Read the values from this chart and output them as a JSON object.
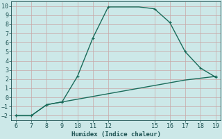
{
  "xlabel": "Humidex (Indice chaleur)",
  "bg_color": "#cce8e8",
  "grid_color_minor": "#c8a8a8",
  "grid_color_major": "#c8a8a8",
  "line_color": "#1a6b5a",
  "line1_x": [
    6,
    7,
    8,
    9,
    10,
    11,
    12,
    13,
    14,
    15,
    16,
    17,
    18,
    19
  ],
  "line1_y": [
    -2,
    -2,
    -0.8,
    -0.5,
    2.3,
    6.5,
    9.9,
    9.9,
    9.9,
    9.7,
    8.2,
    5.0,
    3.2,
    2.2
  ],
  "line2_x": [
    6,
    7,
    8,
    9,
    10,
    11,
    12,
    13,
    14,
    15,
    16,
    17,
    18,
    19
  ],
  "line2_y": [
    -2,
    -2,
    -0.8,
    -0.5,
    -0.2,
    0.1,
    0.4,
    0.7,
    1.0,
    1.3,
    1.6,
    1.9,
    2.1,
    2.3
  ],
  "marker1_x": [
    6,
    7,
    8,
    9,
    10,
    11,
    12,
    15,
    16,
    17,
    18,
    19
  ],
  "marker1_y": [
    -2,
    -2,
    -0.8,
    -0.5,
    2.3,
    6.5,
    9.9,
    9.7,
    8.2,
    5.0,
    3.2,
    2.2
  ],
  "marker2_x": [
    6,
    7,
    8,
    9,
    19
  ],
  "marker2_y": [
    -2,
    -2,
    -0.8,
    -0.5,
    2.3
  ],
  "xlim": [
    5.7,
    19.3
  ],
  "ylim": [
    -2.5,
    10.5
  ],
  "xticks": [
    6,
    7,
    8,
    9,
    10,
    11,
    12,
    15,
    16,
    17,
    18,
    19
  ],
  "yticks": [
    -2,
    -1,
    0,
    1,
    2,
    3,
    4,
    5,
    6,
    7,
    8,
    9,
    10
  ],
  "tick_color": "#1a5050",
  "xlabel_fontsize": 6.5,
  "tick_fontsize": 6.0
}
